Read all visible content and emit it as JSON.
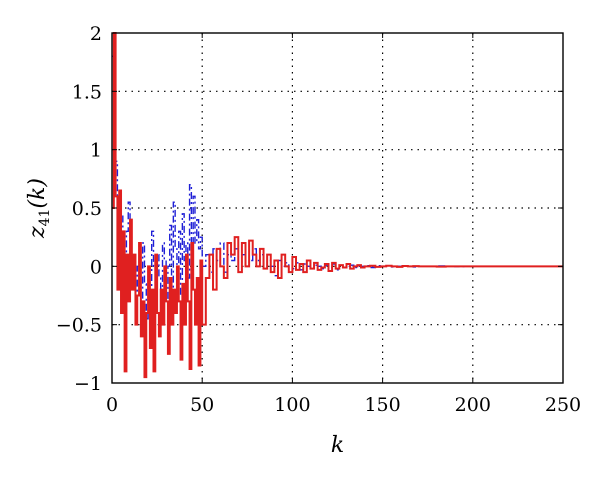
{
  "chart_data": {
    "type": "line",
    "title": "",
    "xlabel": "k",
    "ylabel_main": "z",
    "ylabel_sub": "41",
    "ylabel_tail": "(k)",
    "xlim": [
      0,
      250
    ],
    "ylim": [
      -1,
      2
    ],
    "x_ticks": [
      0,
      50,
      100,
      150,
      200,
      250
    ],
    "y_ticks": [
      -1,
      -0.5,
      0,
      0.5,
      1,
      1.5,
      2
    ],
    "x_tick_labels": [
      "0",
      "50",
      "100",
      "150",
      "200",
      "250"
    ],
    "y_tick_labels": [
      "−1",
      "−0.5",
      "0",
      "0.5",
      "1",
      "1.5",
      "2"
    ],
    "grid": true,
    "grid_style": "dotted",
    "series": [
      {
        "style": "dashdot",
        "color": "#1f1fd6",
        "x": [
          0,
          1,
          2,
          3,
          4,
          5,
          6,
          7,
          8,
          9,
          10,
          11,
          12,
          13,
          14,
          15,
          16,
          17,
          18,
          19,
          20,
          21,
          22,
          23,
          24,
          25,
          26,
          27,
          28,
          29,
          30,
          31,
          32,
          33,
          34,
          35,
          36,
          37,
          38,
          39,
          40,
          41,
          42,
          43,
          44,
          45,
          46,
          47,
          48,
          49,
          50,
          52,
          54,
          56,
          58,
          60,
          62,
          64,
          66,
          68,
          70,
          72,
          74,
          76,
          78,
          80,
          82,
          84,
          86,
          88,
          90,
          92,
          94,
          96,
          98,
          100,
          102,
          104,
          106,
          108,
          110,
          112,
          114,
          116,
          118,
          120,
          122,
          124,
          126,
          128,
          130,
          132,
          134,
          136,
          138,
          140,
          143,
          146,
          149,
          152,
          155,
          158,
          161,
          164,
          167,
          170,
          175,
          180,
          185,
          190,
          195,
          200,
          210,
          220,
          230,
          240,
          250
        ],
        "y": [
          1.8,
          2.0,
          0.9,
          0.5,
          0.6,
          0.45,
          -0.2,
          0.1,
          0.3,
          0.55,
          0.25,
          -0.1,
          0.1,
          -0.4,
          0.0,
          0.05,
          -0.3,
          0.2,
          -0.15,
          -0.45,
          -0.1,
          -0.3,
          0.3,
          0.0,
          -0.2,
          0.1,
          -0.1,
          -0.45,
          0.2,
          0.05,
          -0.3,
          0.0,
          0.35,
          -0.2,
          0.55,
          0.15,
          -0.05,
          0.3,
          -0.25,
          0.45,
          0.05,
          0.2,
          -0.1,
          0.7,
          0.1,
          0.6,
          0.2,
          0.4,
          0.15,
          0.25,
          0.0,
          0.1,
          -0.05,
          0.15,
          0.05,
          0.2,
          -0.05,
          0.1,
          0.05,
          0.15,
          -0.05,
          0.1,
          0.0,
          0.05,
          0.15,
          0.05,
          0.1,
          -0.02,
          0.05,
          0.0,
          -0.08,
          0.05,
          0.0,
          0.03,
          -0.05,
          -0.02,
          0.03,
          -0.03,
          0.02,
          0.0,
          -0.02,
          0.01,
          0.0,
          -0.02,
          0.01,
          -0.01,
          0.02,
          -0.03,
          0.01,
          -0.01,
          0.0,
          0.01,
          -0.01,
          0.005,
          0.0,
          0.005,
          -0.01,
          0.005,
          0.0,
          0.005,
          -0.005,
          0.0,
          0.005,
          0.0,
          -0.005,
          0.0,
          0.0,
          0.003,
          0.0,
          -0.002,
          0.0,
          0.0,
          0.0,
          0.0,
          0.0,
          0.0,
          0.0
        ]
      },
      {
        "style": "solid",
        "color": "#e02020",
        "x": [
          0,
          1,
          2,
          3,
          4,
          5,
          6,
          7,
          8,
          9,
          10,
          11,
          12,
          13,
          14,
          15,
          16,
          17,
          18,
          19,
          20,
          21,
          22,
          23,
          24,
          25,
          26,
          27,
          28,
          29,
          30,
          31,
          32,
          33,
          34,
          35,
          36,
          37,
          38,
          39,
          40,
          41,
          42,
          43,
          44,
          45,
          46,
          47,
          48,
          49,
          50,
          52,
          54,
          56,
          58,
          60,
          62,
          64,
          66,
          68,
          70,
          72,
          74,
          76,
          78,
          80,
          82,
          84,
          86,
          88,
          90,
          92,
          94,
          96,
          98,
          100,
          102,
          104,
          106,
          108,
          110,
          112,
          114,
          116,
          118,
          120,
          122,
          124,
          126,
          128,
          130,
          132,
          134,
          136,
          138,
          140,
          143,
          146,
          149,
          152,
          155,
          158,
          161,
          164,
          167,
          170,
          175,
          180,
          185,
          190,
          195,
          200,
          210,
          220,
          230,
          240,
          250
        ],
        "y": [
          0.5,
          2.0,
          0.6,
          -0.2,
          0.65,
          -0.4,
          0.3,
          -0.9,
          0.1,
          -0.3,
          0.4,
          -0.2,
          0.1,
          -0.5,
          -0.25,
          0.2,
          -0.6,
          -0.3,
          -0.95,
          -0.4,
          0.0,
          -0.7,
          -0.2,
          -0.9,
          0.1,
          -0.4,
          -0.6,
          -0.2,
          -0.5,
          0.0,
          -0.3,
          -0.75,
          -0.1,
          -0.5,
          -0.2,
          -0.4,
          0.0,
          -0.3,
          -0.8,
          -0.15,
          -0.5,
          0.1,
          -0.3,
          -0.88,
          0.2,
          -0.2,
          -0.5,
          -0.1,
          -0.85,
          0.05,
          -0.5,
          -0.1,
          0.1,
          -0.2,
          0.15,
          0.0,
          -0.1,
          0.2,
          0.1,
          0.25,
          -0.05,
          0.2,
          0.0,
          0.22,
          0.1,
          0.0,
          0.15,
          -0.02,
          0.1,
          -0.05,
          0.05,
          -0.1,
          0.1,
          0.0,
          -0.05,
          0.08,
          -0.03,
          0.02,
          -0.05,
          0.05,
          -0.02,
          0.03,
          -0.03,
          -0.01,
          0.02,
          -0.04,
          0.03,
          -0.02,
          0.01,
          -0.01,
          0.02,
          -0.02,
          0.0,
          0.01,
          -0.01,
          0.0,
          0.005,
          -0.005,
          0.0,
          0.005,
          0.0,
          -0.005,
          0.003,
          0.0,
          0.002,
          0.0,
          0.0,
          -0.002,
          0.0,
          0.0,
          0.0,
          0.0,
          0.0,
          0.0,
          0.0,
          0.0,
          0.0
        ]
      }
    ]
  }
}
